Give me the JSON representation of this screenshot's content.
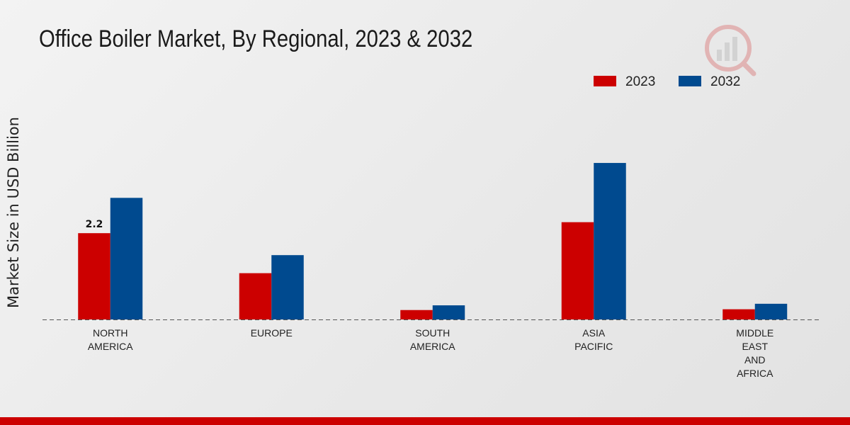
{
  "chart_data": {
    "type": "bar",
    "title": "Office Boiler Market, By Regional, 2023 & 2032",
    "ylabel": "Market Size in USD Billion",
    "xlabel": "",
    "categories": [
      [
        "NORTH",
        "AMERICA"
      ],
      [
        "EUROPE"
      ],
      [
        "SOUTH",
        "AMERICA"
      ],
      [
        "ASIA",
        "PACIFIC"
      ],
      [
        "MIDDLE",
        "EAST",
        "AND",
        "AFRICA"
      ]
    ],
    "series": [
      {
        "name": "2023",
        "color": "#cc0000",
        "values": [
          2.2,
          1.18,
          0.24,
          2.48,
          0.26
        ]
      },
      {
        "name": "2032",
        "color": "#004a8f",
        "values": [
          3.1,
          1.64,
          0.36,
          3.99,
          0.4
        ]
      }
    ],
    "data_labels": [
      {
        "series": 0,
        "index": 0,
        "text": "2.2"
      }
    ],
    "ylim": [
      0,
      8
    ],
    "grid": false,
    "legend_position": "top-right"
  }
}
